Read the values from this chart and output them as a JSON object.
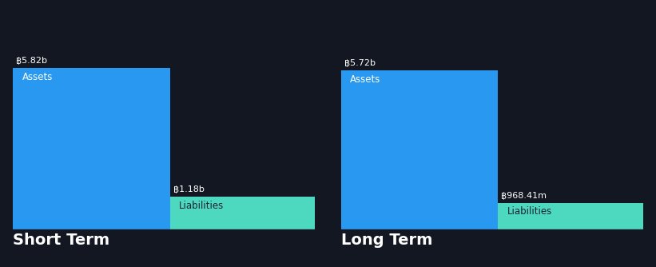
{
  "background_color": "#131722",
  "bar_color_assets": "#2898F0",
  "bar_color_liabilities": "#4DD9C0",
  "text_color_white": "#FFFFFF",
  "text_color_dark": "#1a2035",
  "baseline_color": "#2a3050",
  "panels": [
    {
      "label": "Short Term",
      "assets_value": 5.82,
      "assets_label": "฿5.82b",
      "liabilities_value": 1.18,
      "liabilities_label": "฿1.18b",
      "assets_text": "Assets",
      "liabilities_text": "Liabilities"
    },
    {
      "label": "Long Term",
      "assets_value": 5.72,
      "assets_label": "฿5.72b",
      "liabilities_value": 0.96841,
      "liabilities_label": "฿968.41m",
      "assets_text": "Assets",
      "liabilities_text": "Liabilities"
    }
  ],
  "value_fontsize": 8.0,
  "label_fontsize": 8.5,
  "title_fontsize": 14
}
